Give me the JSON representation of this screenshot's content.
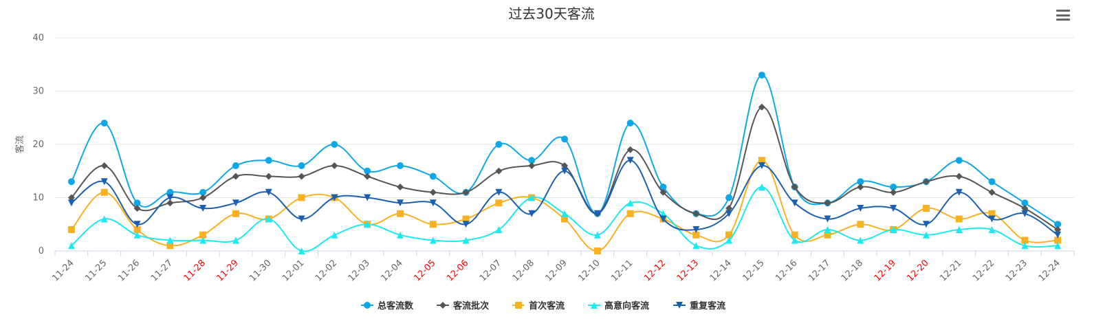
{
  "chart_data": {
    "type": "line",
    "title": "过去30天客流",
    "xlabel": "",
    "ylabel": "客流",
    "ylim": [
      0,
      40
    ],
    "yticks": [
      0,
      10,
      20,
      30,
      40
    ],
    "grid": true,
    "legend_position": "bottom-center",
    "categories": [
      "11-24",
      "11-25",
      "11-26",
      "11-27",
      "11-28",
      "11-29",
      "11-30",
      "12-01",
      "12-02",
      "12-03",
      "12-04",
      "12-05",
      "12-06",
      "12-07",
      "12-08",
      "12-09",
      "12-10",
      "12-11",
      "12-12",
      "12-13",
      "12-14",
      "12-15",
      "12-16",
      "12-17",
      "12-18",
      "12-19",
      "12-20",
      "12-21",
      "12-22",
      "12-23",
      "12-24"
    ],
    "highlight_categories": [
      "11-28",
      "11-29",
      "12-05",
      "12-06",
      "12-12",
      "12-13",
      "12-19",
      "12-20"
    ],
    "normal_label_color": "#666666",
    "highlight_label_color": "#ff0000",
    "series": [
      {
        "name": "总客流数",
        "color": "#0ea7e6",
        "marker": "circle",
        "values": [
          13,
          24,
          9,
          11,
          11,
          16,
          17,
          16,
          20,
          15,
          16,
          14,
          11,
          20,
          17,
          21,
          7,
          24,
          12,
          7,
          10,
          33,
          12,
          9,
          13,
          12,
          13,
          17,
          13,
          9,
          5
        ]
      },
      {
        "name": "客流批次",
        "color": "#555555",
        "marker": "diamond",
        "values": [
          10,
          16,
          8,
          9,
          10,
          14,
          14,
          14,
          16,
          14,
          12,
          11,
          11,
          15,
          16,
          16,
          7,
          19,
          11,
          7,
          8,
          27,
          12,
          9,
          12,
          11,
          13,
          14,
          11,
          8,
          4
        ]
      },
      {
        "name": "首次客流",
        "color": "#f9b122",
        "marker": "square",
        "values": [
          4,
          11,
          4,
          1,
          3,
          7,
          6,
          10,
          10,
          5,
          7,
          5,
          6,
          9,
          10,
          6,
          0,
          7,
          6,
          3,
          3,
          17,
          3,
          3,
          5,
          4,
          8,
          6,
          7,
          2,
          2
        ]
      },
      {
        "name": "高意向客流",
        "color": "#1de9f0",
        "marker": "triangle",
        "values": [
          1,
          6,
          3,
          2,
          2,
          2,
          6,
          0,
          3,
          5,
          3,
          2,
          2,
          4,
          10,
          7,
          3,
          9,
          7,
          1,
          2,
          12,
          2,
          4,
          2,
          4,
          3,
          4,
          4,
          1,
          1
        ]
      },
      {
        "name": "重复客流",
        "color": "#1a5fb0",
        "marker": "triangle-down",
        "values": [
          9,
          13,
          5,
          10,
          8,
          9,
          11,
          6,
          10,
          10,
          9,
          9,
          5,
          11,
          7,
          15,
          7,
          17,
          6,
          4,
          7,
          16,
          9,
          6,
          8,
          8,
          5,
          11,
          6,
          7,
          3
        ]
      }
    ]
  }
}
